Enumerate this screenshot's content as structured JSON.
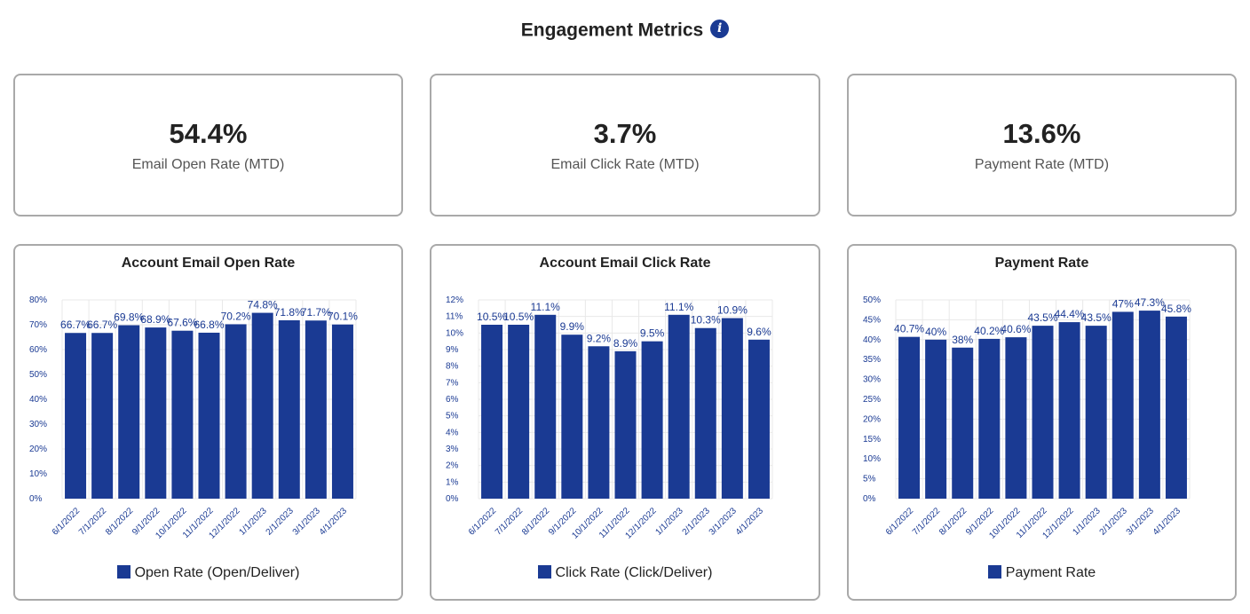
{
  "header": {
    "title": "Engagement Metrics",
    "info_icon": "info-icon"
  },
  "colors": {
    "bar": "#1a3a93",
    "label": "#1a3a93",
    "grid": "#e8e8e8"
  },
  "kpis": [
    {
      "value": "54.4%",
      "label": "Email Open Rate (MTD)"
    },
    {
      "value": "3.7%",
      "label": "Email Click Rate (MTD)"
    },
    {
      "value": "13.6%",
      "label": "Payment Rate (MTD)"
    }
  ],
  "chart_data": [
    {
      "type": "bar",
      "title": "Account Email Open Rate",
      "categories": [
        "6/1/2022",
        "7/1/2022",
        "8/1/2022",
        "9/1/2022",
        "10/1/2022",
        "11/1/2022",
        "12/1/2022",
        "1/1/2023",
        "2/1/2023",
        "3/1/2023",
        "4/1/2023"
      ],
      "values": [
        66.7,
        66.7,
        69.8,
        68.9,
        67.6,
        66.8,
        70.2,
        74.8,
        71.8,
        71.7,
        70.1
      ],
      "value_labels": [
        "66.7%",
        "66.7%",
        "69.8%",
        "68.9%",
        "67.6%",
        "66.8%",
        "70.2%",
        "74.8%",
        "71.8%",
        "71.7%",
        "70.1%"
      ],
      "yticks": [
        "0%",
        "10%",
        "20%",
        "30%",
        "40%",
        "50%",
        "60%",
        "70%",
        "80%"
      ],
      "ylim": [
        0,
        80
      ],
      "legend": "Open Rate (Open/Deliver)"
    },
    {
      "type": "bar",
      "title": "Account Email Click Rate",
      "categories": [
        "6/1/2022",
        "7/1/2022",
        "8/1/2022",
        "9/1/2022",
        "10/1/2022",
        "11/1/2022",
        "12/1/2022",
        "1/1/2023",
        "2/1/2023",
        "3/1/2023",
        "4/1/2023"
      ],
      "values": [
        10.5,
        10.5,
        11.1,
        9.9,
        9.2,
        8.9,
        9.5,
        11.1,
        10.3,
        10.9,
        9.6
      ],
      "value_labels": [
        "10.5%",
        "10.5%",
        "11.1%",
        "9.9%",
        "9.2%",
        "8.9%",
        "9.5%",
        "11.1%",
        "10.3%",
        "10.9%",
        "9.6%"
      ],
      "yticks": [
        "0%",
        "1%",
        "2%",
        "3%",
        "4%",
        "5%",
        "6%",
        "7%",
        "8%",
        "9%",
        "10%",
        "11%",
        "12%"
      ],
      "ylim": [
        0,
        12
      ],
      "legend": "Click Rate (Click/Deliver)"
    },
    {
      "type": "bar",
      "title": "Payment Rate",
      "categories": [
        "6/1/2022",
        "7/1/2022",
        "8/1/2022",
        "9/1/2022",
        "10/1/2022",
        "11/1/2022",
        "12/1/2022",
        "1/1/2023",
        "2/1/2023",
        "3/1/2023",
        "4/1/2023"
      ],
      "values": [
        40.7,
        40,
        38,
        40.2,
        40.6,
        43.5,
        44.4,
        43.5,
        47,
        47.3,
        45.8
      ],
      "value_labels": [
        "40.7%",
        "40%",
        "38%",
        "40.2%",
        "40.6%",
        "43.5%",
        "44.4%",
        "43.5%",
        "47%",
        "47.3%",
        "45.8%"
      ],
      "yticks": [
        "0%",
        "5%",
        "10%",
        "15%",
        "20%",
        "25%",
        "30%",
        "35%",
        "40%",
        "45%",
        "50%"
      ],
      "ylim": [
        0,
        50
      ],
      "legend": "Payment Rate"
    }
  ]
}
